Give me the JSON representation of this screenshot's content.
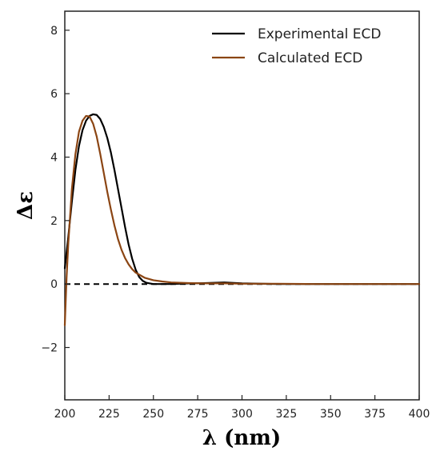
{
  "chart_data": {
    "type": "line",
    "title": "",
    "xlabel": "λ (nm)",
    "ylabel": "Δε",
    "xlim": [
      200,
      400
    ],
    "ylim": [
      -3.65,
      8.6
    ],
    "xticks": [
      200,
      225,
      250,
      275,
      300,
      325,
      350,
      375,
      400
    ],
    "yticks": [
      -2,
      0,
      2,
      4,
      6,
      8
    ],
    "xtick_labels": [
      "200",
      "225",
      "250",
      "275",
      "300",
      "325",
      "350",
      "375",
      "400"
    ],
    "ytick_labels": [
      "−2",
      "0",
      "2",
      "4",
      "6",
      "8"
    ],
    "grid": false,
    "legend_position": "top-right",
    "baseline": {
      "y": 0,
      "style": "dashed",
      "color": "#000000"
    },
    "series": [
      {
        "name": "Experimental ECD",
        "color": "#000000",
        "x": [
          200,
          202,
          204,
          206,
          208,
          210,
          212,
          214,
          216,
          218,
          220,
          222,
          224,
          226,
          228,
          230,
          232,
          234,
          236,
          238,
          240,
          242,
          244,
          246,
          248,
          250,
          255,
          260,
          270,
          280,
          290,
          300,
          320,
          340,
          360,
          380,
          400
        ],
        "y": [
          0.5,
          1.5,
          2.6,
          3.6,
          4.35,
          4.85,
          5.15,
          5.3,
          5.35,
          5.33,
          5.2,
          4.95,
          4.6,
          4.15,
          3.6,
          3.0,
          2.4,
          1.8,
          1.25,
          0.8,
          0.45,
          0.22,
          0.1,
          0.04,
          0.02,
          0.0,
          0.0,
          0.0,
          0.02,
          0.03,
          0.05,
          0.02,
          0.0,
          0.0,
          0.0,
          0.0,
          0.0
        ]
      },
      {
        "name": "Calculated ECD",
        "color": "#8B4513",
        "x": [
          200,
          201,
          202,
          204,
          206,
          208,
          210,
          212,
          214,
          216,
          218,
          220,
          222,
          224,
          226,
          228,
          230,
          232,
          234,
          236,
          238,
          240,
          245,
          250,
          255,
          260,
          265,
          270,
          280,
          290,
          300,
          320,
          340,
          360,
          380,
          400
        ],
        "y": [
          -1.3,
          0.2,
          1.3,
          3.0,
          4.1,
          4.8,
          5.15,
          5.3,
          5.28,
          5.05,
          4.65,
          4.1,
          3.5,
          2.9,
          2.35,
          1.85,
          1.42,
          1.08,
          0.82,
          0.62,
          0.47,
          0.36,
          0.2,
          0.12,
          0.08,
          0.05,
          0.04,
          0.03,
          0.02,
          0.02,
          0.01,
          0.01,
          0.0,
          0.0,
          0.0,
          0.0
        ]
      }
    ]
  }
}
